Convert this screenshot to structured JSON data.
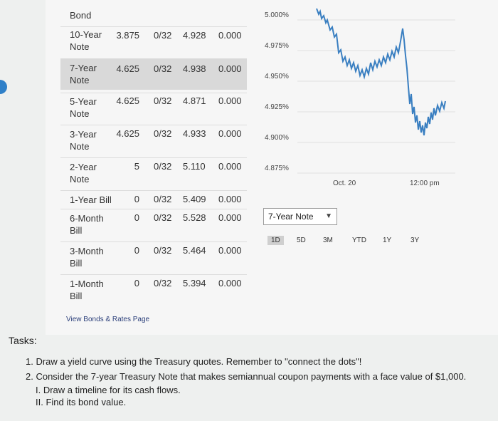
{
  "left_marker": "",
  "bond_header": "Bond",
  "rows": [
    {
      "name_l1": "10-Year",
      "name_l2": "Note",
      "coupon": "3.875",
      "price": "0/32",
      "yield": "4.928",
      "change": "0.000"
    },
    {
      "name_l1": "7-Year",
      "name_l2": "Note",
      "coupon": "4.625",
      "price": "0/32",
      "yield": "4.938",
      "change": "0.000"
    },
    {
      "name_l1": "5-Year",
      "name_l2": "Note",
      "coupon": "4.625",
      "price": "0/32",
      "yield": "4.871",
      "change": "0.000"
    },
    {
      "name_l1": "3-Year",
      "name_l2": "Note",
      "coupon": "4.625",
      "price": "0/32",
      "yield": "4.933",
      "change": "0.000"
    },
    {
      "name_l1": "2-Year",
      "name_l2": "Note",
      "coupon": "5",
      "price": "0/32",
      "yield": "5.110",
      "change": "0.000"
    },
    {
      "name_l1": "1-Year Bill",
      "name_l2": "",
      "coupon": "0",
      "price": "0/32",
      "yield": "5.409",
      "change": "0.000"
    },
    {
      "name_l1": "6-Month",
      "name_l2": "Bill",
      "coupon": "0",
      "price": "0/32",
      "yield": "5.528",
      "change": "0.000"
    },
    {
      "name_l1": "3-Month",
      "name_l2": "Bill",
      "coupon": "0",
      "price": "0/32",
      "yield": "5.464",
      "change": "0.000"
    },
    {
      "name_l1": "1-Month",
      "name_l2": "Bill",
      "coupon": "0",
      "price": "0/32",
      "yield": "5.394",
      "change": "0.000"
    }
  ],
  "chart": {
    "y_ticks": [
      "5.000%",
      "4.975%",
      "4.950%",
      "4.925%",
      "4.900%",
      "4.875%"
    ],
    "x_ticks": [
      "Oct. 20",
      "12:00 pm"
    ],
    "line_color": "#3a7fc1"
  },
  "selector": {
    "value": "7-Year Note"
  },
  "ranges": [
    "1D",
    "5D",
    "3M",
    "YTD",
    "1Y",
    "3Y"
  ],
  "active_range": "1D",
  "link_text": "View Bonds & Rates Page",
  "tasks": {
    "title": "Tasks:",
    "lines": [
      "1. Draw a yield curve using the Treasury quotes. Remember to \"connect the dots\"!",
      "2. Consider the 7-year Treasury Note that makes semiannual coupon payments with a face value of $1,000.",
      "I. Draw a timeline for its cash flows.",
      "II. Find its bond value."
    ]
  }
}
